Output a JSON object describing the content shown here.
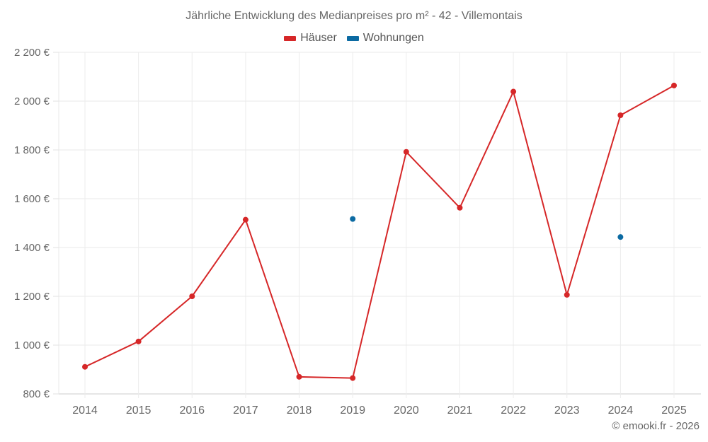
{
  "title": "Jährliche Entwicklung des Medianpreises pro m² - 42 - Villemontais",
  "legend": [
    {
      "label": "Häuser",
      "color": "#d62728"
    },
    {
      "label": "Wohnungen",
      "color": "#0b6aa2"
    }
  ],
  "credit": "© emooki.fr - 2026",
  "chart_data": {
    "type": "line",
    "title": "Jährliche Entwicklung des Medianpreises pro m² - 42 - Villemontais",
    "xlabel": "",
    "ylabel": "",
    "categories": [
      2014,
      2015,
      2016,
      2017,
      2018,
      2019,
      2020,
      2021,
      2022,
      2023,
      2024,
      2025
    ],
    "series": [
      {
        "name": "Häuser",
        "color": "#d62728",
        "values": [
          911,
          1015,
          1200,
          1514,
          870,
          865,
          1792,
          1563,
          2039,
          1206,
          1942,
          2064
        ]
      },
      {
        "name": "Wohnungen",
        "color": "#0b6aa2",
        "values": [
          null,
          null,
          null,
          null,
          null,
          1517,
          null,
          null,
          null,
          null,
          1443,
          null
        ]
      }
    ],
    "ylim": [
      800,
      2200
    ],
    "yticks": [
      800,
      1000,
      1200,
      1400,
      1600,
      1800,
      2000,
      2200
    ],
    "ytick_labels": [
      "800 €",
      "1 000 €",
      "1 200 €",
      "1 400 €",
      "1 600 €",
      "1 800 €",
      "2 000 €",
      "2 200 €"
    ],
    "grid": true,
    "legend_position": "top"
  }
}
